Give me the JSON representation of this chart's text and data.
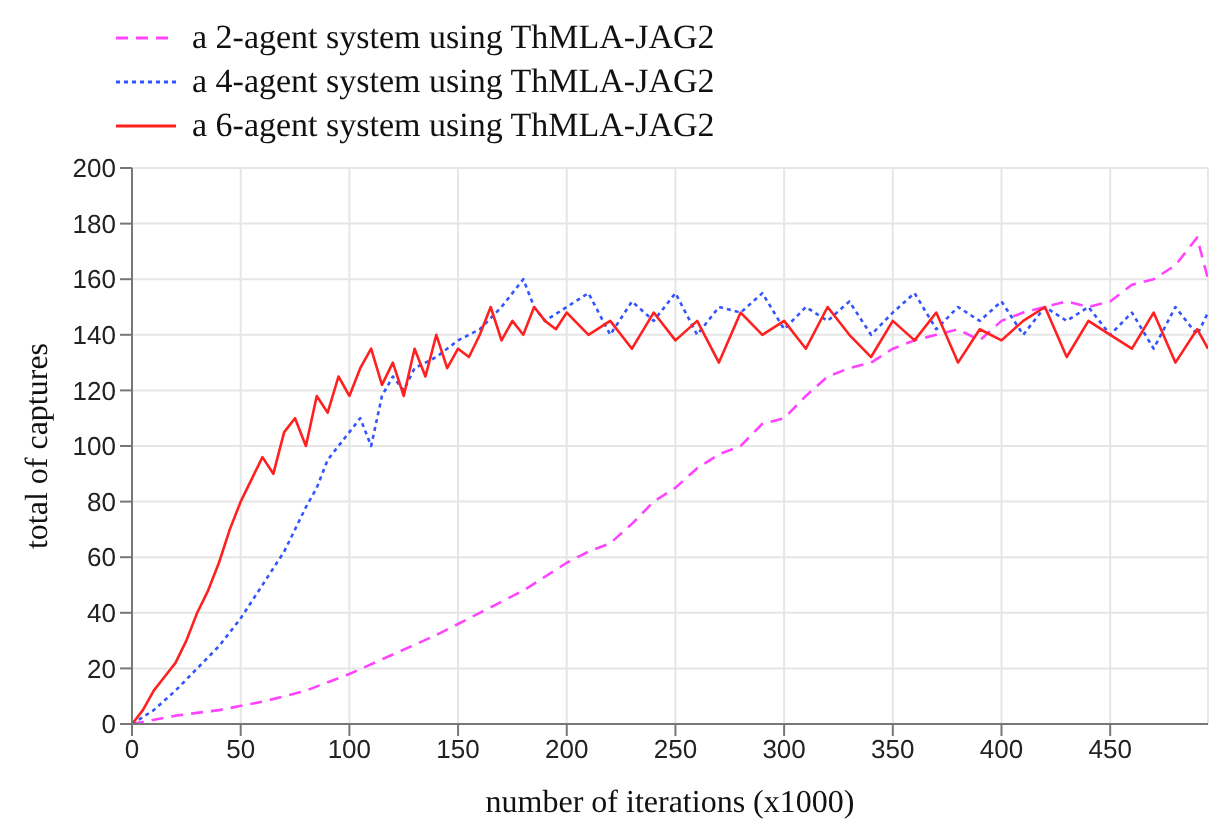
{
  "chart_data": {
    "type": "line",
    "xlabel": "number of iterations (x1000)",
    "ylabel": "total of captures",
    "xlim": [
      0,
      495
    ],
    "xticks": [
      0,
      50,
      100,
      150,
      200,
      250,
      300,
      350,
      400,
      450
    ],
    "ylim": [
      0,
      200
    ],
    "yticks": [
      0,
      20,
      40,
      60,
      80,
      100,
      120,
      140,
      160,
      180,
      200
    ],
    "grid": true,
    "legend": "top left",
    "marker": "none",
    "series": [
      {
        "name": "a 2-agent system using ThMLA-JAG2",
        "color": "#ff44ff",
        "line_style": "dashed",
        "x": [
          0,
          20,
          40,
          60,
          80,
          100,
          120,
          140,
          160,
          180,
          200,
          210,
          220,
          230,
          240,
          250,
          260,
          270,
          280,
          290,
          300,
          310,
          320,
          330,
          340,
          350,
          360,
          370,
          380,
          390,
          400,
          410,
          420,
          430,
          440,
          450,
          460,
          470,
          480,
          490,
          495
        ],
        "values": [
          0,
          3,
          5,
          8,
          12,
          18,
          25,
          32,
          40,
          48,
          58,
          62,
          65,
          72,
          80,
          85,
          92,
          97,
          100,
          108,
          110,
          118,
          125,
          128,
          130,
          135,
          138,
          140,
          142,
          138,
          145,
          148,
          150,
          152,
          150,
          152,
          158,
          160,
          165,
          175,
          160
        ]
      },
      {
        "name": "a 4-agent system using ThMLA-JAG2",
        "color": "#3355ff",
        "line_style": "dotted",
        "x": [
          0,
          10,
          20,
          30,
          40,
          50,
          60,
          70,
          80,
          85,
          90,
          95,
          100,
          105,
          110,
          115,
          120,
          125,
          130,
          140,
          150,
          160,
          170,
          175,
          180,
          185,
          190,
          200,
          210,
          220,
          230,
          240,
          250,
          260,
          270,
          280,
          290,
          300,
          310,
          320,
          330,
          340,
          350,
          360,
          370,
          380,
          390,
          400,
          410,
          420,
          430,
          440,
          450,
          460,
          470,
          480,
          490,
          495
        ],
        "values": [
          0,
          5,
          12,
          20,
          28,
          38,
          50,
          62,
          78,
          85,
          95,
          100,
          105,
          110,
          100,
          118,
          125,
          120,
          128,
          132,
          138,
          142,
          150,
          155,
          160,
          150,
          145,
          150,
          155,
          140,
          152,
          145,
          155,
          140,
          150,
          148,
          155,
          142,
          150,
          145,
          152,
          140,
          148,
          155,
          142,
          150,
          145,
          152,
          140,
          150,
          145,
          150,
          140,
          148,
          135,
          150,
          140,
          148
        ]
      },
      {
        "name": "a 6-agent system using ThMLA-JAG2",
        "color": "#ff2020",
        "line_style": "solid",
        "x": [
          0,
          5,
          10,
          15,
          20,
          25,
          30,
          35,
          40,
          45,
          50,
          55,
          60,
          65,
          70,
          75,
          80,
          85,
          90,
          95,
          100,
          105,
          110,
          115,
          120,
          125,
          130,
          135,
          140,
          145,
          150,
          155,
          160,
          165,
          170,
          175,
          180,
          185,
          190,
          195,
          200,
          210,
          220,
          230,
          240,
          250,
          260,
          270,
          280,
          290,
          300,
          310,
          320,
          330,
          340,
          350,
          360,
          370,
          380,
          390,
          400,
          410,
          420,
          430,
          440,
          450,
          460,
          470,
          480,
          490,
          495
        ],
        "values": [
          0,
          5,
          12,
          17,
          22,
          30,
          40,
          48,
          58,
          70,
          80,
          88,
          96,
          90,
          105,
          110,
          100,
          118,
          112,
          125,
          118,
          128,
          135,
          122,
          130,
          118,
          135,
          125,
          140,
          128,
          135,
          132,
          140,
          150,
          138,
          145,
          140,
          150,
          145,
          142,
          148,
          140,
          145,
          135,
          148,
          138,
          145,
          130,
          148,
          140,
          145,
          135,
          150,
          140,
          132,
          145,
          138,
          148,
          130,
          142,
          138,
          145,
          150,
          132,
          145,
          140,
          135,
          148,
          130,
          142,
          135
        ]
      }
    ]
  }
}
